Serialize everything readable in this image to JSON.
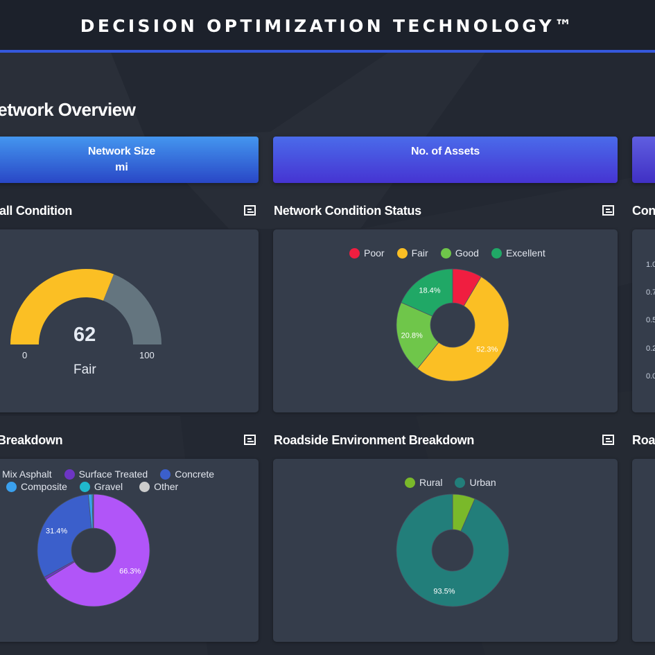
{
  "header": {
    "title": "DECISION OPTIMIZATION TECHNOLOGY™"
  },
  "page": {
    "title": "Network Overview"
  },
  "kpis": [
    {
      "label": "Network Size",
      "unit": "mi"
    },
    {
      "label": "No. of Assets",
      "unit": ""
    },
    {
      "label": "",
      "unit": ""
    }
  ],
  "sections": {
    "overall_condition": {
      "title": "Overall Condition",
      "visible_title": "all Condition",
      "menu_icon": "menu-icon"
    },
    "network_condition": {
      "title": "Network Condition Status",
      "menu_icon": "menu-icon"
    },
    "condition_trend": {
      "title": "Con"
    },
    "pavement": {
      "title": "Breakdown",
      "menu_icon": "menu-icon"
    },
    "roadside": {
      "title": "Roadside Environment Breakdown",
      "menu_icon": "menu-icon"
    },
    "road_right": {
      "title": "Roa"
    }
  },
  "trend_axis": {
    "ticks": [
      "1.0",
      "0.7",
      "0.5",
      "0.2",
      "0.0"
    ]
  },
  "colors": {
    "accent": "#3558dc",
    "gauge_fill": "#fbbf24",
    "gauge_rest": "#64757f"
  },
  "chart_data": [
    {
      "type": "gauge",
      "name": "overall-condition",
      "value": 62,
      "min": 0,
      "max": 100,
      "min_label": "0",
      "max_label": "100",
      "value_label": "62",
      "rating": "Fair"
    },
    {
      "type": "pie",
      "name": "network-condition-status",
      "donut": true,
      "legend": "top",
      "categories": [
        "Poor",
        "Fair",
        "Good",
        "Excellent"
      ],
      "values": [
        8.5,
        52.3,
        20.8,
        18.4
      ],
      "labels": [
        "",
        "52.3%",
        "20.8%",
        "18.4%"
      ],
      "colors": [
        "#f01e40",
        "#fbbf24",
        "#6fc64a",
        "#20a866"
      ]
    },
    {
      "type": "pie",
      "name": "pavement-breakdown",
      "donut": true,
      "legend": "top",
      "categories": [
        "Mix Asphalt",
        "Surface Treated",
        "Concrete",
        "Composite",
        "Gravel",
        "Other"
      ],
      "legend_text": [
        "Mix Asphalt",
        "Surface Treated",
        "Concrete",
        "Composite",
        "Gravel",
        "Other"
      ],
      "values": [
        66.3,
        0.8,
        31.4,
        1.1,
        0.3,
        0.1
      ],
      "labels": [
        "66.3%",
        "",
        "31.4%",
        "",
        "",
        ""
      ],
      "colors": [
        "#b155f8",
        "#6d35c4",
        "#3b5fcb",
        "#3aa0ee",
        "#20b8cc",
        "#cccccc"
      ]
    },
    {
      "type": "pie",
      "name": "roadside-environment-breakdown",
      "donut": true,
      "legend": "top",
      "categories": [
        "Rural",
        "Urban"
      ],
      "values": [
        6.5,
        93.5
      ],
      "labels": [
        "",
        "93.5%"
      ],
      "colors": [
        "#7ab92a",
        "#227e7a"
      ]
    }
  ]
}
